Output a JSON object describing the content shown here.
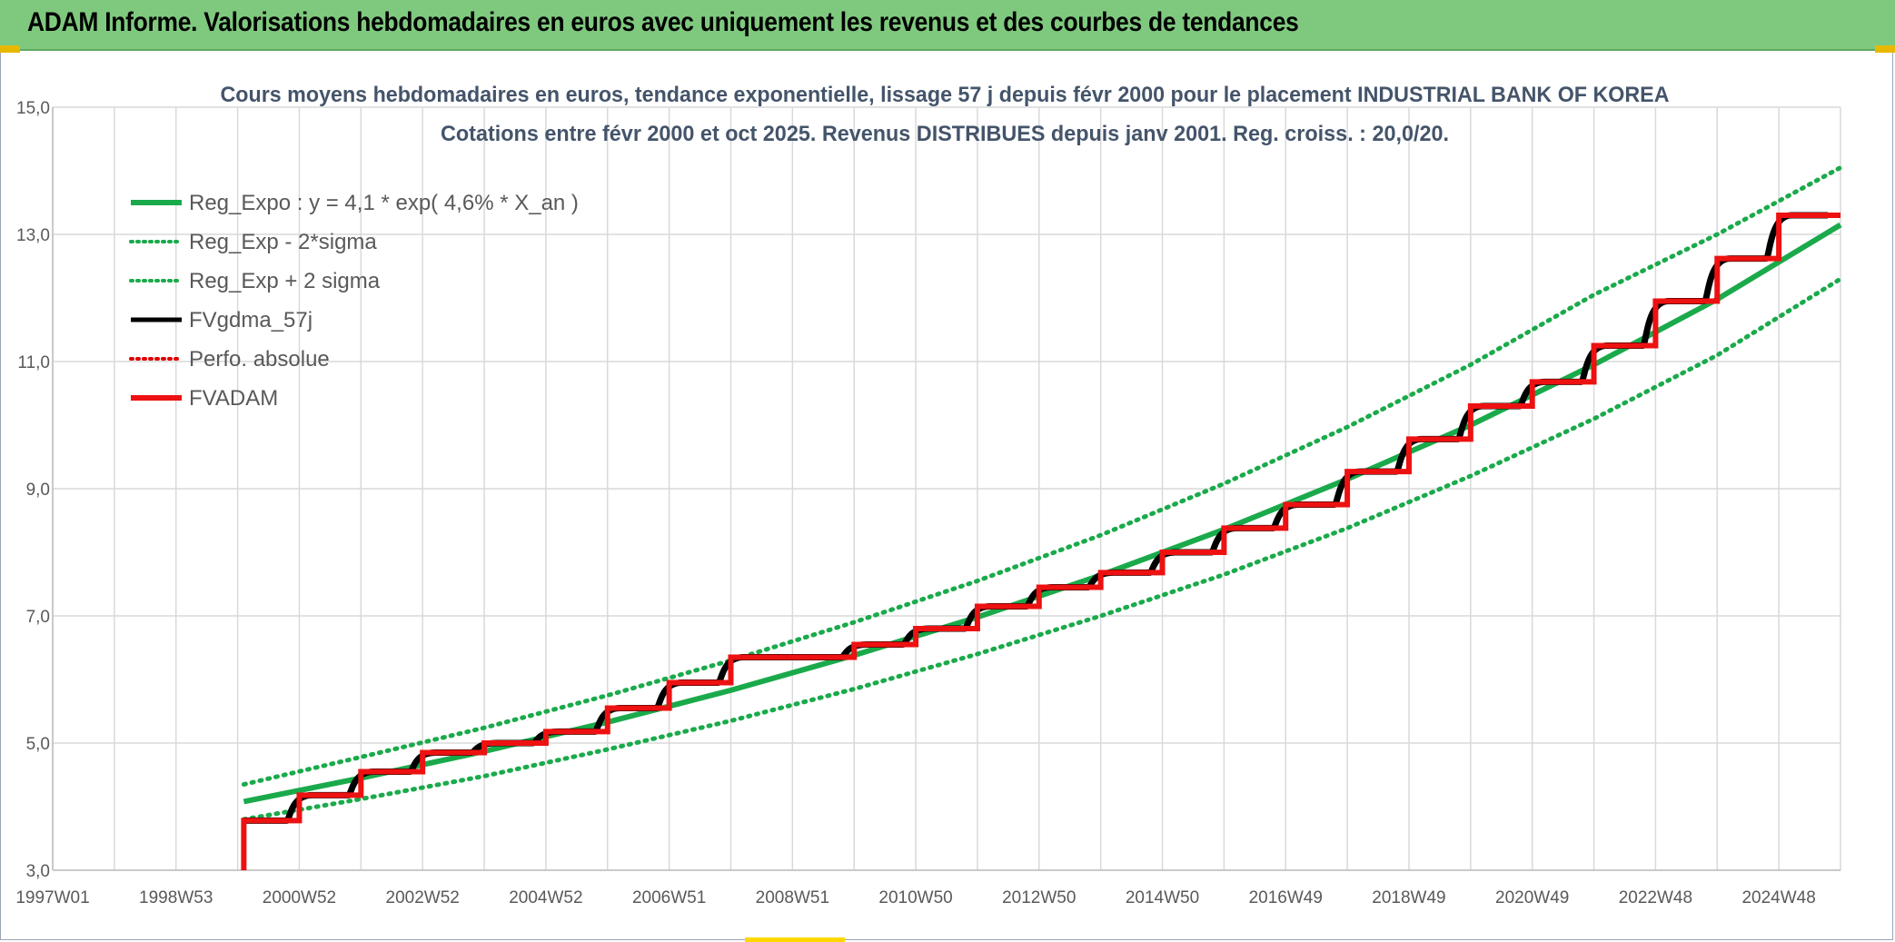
{
  "header": {
    "title": "ADAM Informe. Valorisations hebdomadaires en euros avec uniquement les revenus et des courbes de tendances"
  },
  "colors": {
    "header_bg": "#7fc97f",
    "regression": "#1aaa4b",
    "fv_gdma": "#000000",
    "perfo": "#e00000",
    "fvadam": "#ee1111",
    "grid": "#d9d9d9"
  },
  "chart_data": {
    "type": "line",
    "title": "Cours moyens hebdomadaires en euros, tendance exponentielle, lissage 57 j depuis févr 2000 pour le placement INDUSTRIAL BANK OF KOREA",
    "subtitle": "Cotations entre févr 2000 et oct 2025. Revenus DISTRIBUES depuis janv 2001. Reg. croiss. : 20,0/20.",
    "xlabel": "",
    "ylabel": "",
    "ylim": [
      3.0,
      15.0
    ],
    "xlim": [
      1997.0,
      2026.0
    ],
    "grid": true,
    "legend_position": "top-left",
    "x_tick_labels": [
      "1997W01",
      "1998W53",
      "2000W52",
      "2002W52",
      "2004W52",
      "2006W51",
      "2008W51",
      "2010W50",
      "2012W50",
      "2014W50",
      "2016W49",
      "2018W49",
      "2020W49",
      "2022W48",
      "2024W48"
    ],
    "y_tick_labels": [
      "3,0",
      "5,0",
      "7,0",
      "9,0",
      "11,0",
      "13,0",
      "15,0"
    ],
    "legend": [
      {
        "label": "Reg_Expo : y = 4,1 * exp( 4,6% *  X_an )",
        "style": "solid-thick",
        "color": "#1aaa4b"
      },
      {
        "label": "Reg_Exp - 2*sigma",
        "style": "dotted",
        "color": "#1aaa4b"
      },
      {
        "label": "Reg_Exp + 2 sigma",
        "style": "dotted",
        "color": "#1aaa4b"
      },
      {
        "label": "FVgdma_57j",
        "style": "solid",
        "color": "#000000"
      },
      {
        "label": "Perfo. absolue",
        "style": "dotted",
        "color": "#e00000"
      },
      {
        "label": "FVADAM",
        "style": "solid-thick",
        "color": "#ee1111"
      }
    ],
    "series": [
      {
        "name": "Reg_Expo : y = 4,1 * exp( 4,6% *  X_an )",
        "x": [
          2000.1,
          2002,
          2004,
          2006,
          2008,
          2010,
          2012,
          2014,
          2016,
          2018,
          2020,
          2022,
          2024,
          2026
        ],
        "y": [
          4.08,
          4.45,
          4.87,
          5.33,
          5.83,
          6.38,
          6.98,
          7.64,
          8.36,
          9.15,
          10.0,
          10.95,
          11.98,
          13.15
        ]
      },
      {
        "name": "Reg_Exp - 2*sigma",
        "x": [
          2000.1,
          2002,
          2004,
          2006,
          2008,
          2010,
          2012,
          2014,
          2016,
          2018,
          2020,
          2022,
          2024,
          2026
        ],
        "y": [
          3.8,
          4.12,
          4.48,
          4.9,
          5.35,
          5.85,
          6.4,
          7.0,
          7.65,
          8.38,
          9.2,
          10.1,
          11.1,
          12.3
        ]
      },
      {
        "name": "Reg_Exp + 2 sigma",
        "x": [
          2000.1,
          2002,
          2004,
          2006,
          2008,
          2010,
          2012,
          2014,
          2016,
          2018,
          2020,
          2022,
          2024,
          2026
        ],
        "y": [
          4.35,
          4.78,
          5.24,
          5.75,
          6.3,
          6.9,
          7.55,
          8.27,
          9.08,
          9.97,
          10.95,
          12.05,
          13.0,
          14.05
        ]
      },
      {
        "name": "FVADAM",
        "steps": [
          {
            "x": 2000.1,
            "y": 3.78
          },
          {
            "x": 2001.0,
            "y": 4.18
          },
          {
            "x": 2002.0,
            "y": 4.55
          },
          {
            "x": 2003.0,
            "y": 4.85
          },
          {
            "x": 2004.0,
            "y": 5.0
          },
          {
            "x": 2005.0,
            "y": 5.18
          },
          {
            "x": 2006.0,
            "y": 5.55
          },
          {
            "x": 2007.0,
            "y": 5.95
          },
          {
            "x": 2008.0,
            "y": 6.35
          },
          {
            "x": 2010.0,
            "y": 6.55
          },
          {
            "x": 2011.0,
            "y": 6.8
          },
          {
            "x": 2012.0,
            "y": 7.15
          },
          {
            "x": 2013.0,
            "y": 7.45
          },
          {
            "x": 2014.0,
            "y": 7.68
          },
          {
            "x": 2015.0,
            "y": 8.0
          },
          {
            "x": 2016.0,
            "y": 8.38
          },
          {
            "x": 2017.0,
            "y": 8.75
          },
          {
            "x": 2018.0,
            "y": 9.27
          },
          {
            "x": 2019.0,
            "y": 9.78
          },
          {
            "x": 2020.0,
            "y": 10.3
          },
          {
            "x": 2021.0,
            "y": 10.68
          },
          {
            "x": 2022.0,
            "y": 11.25
          },
          {
            "x": 2023.0,
            "y": 11.95
          },
          {
            "x": 2024.0,
            "y": 12.62
          },
          {
            "x": 2025.0,
            "y": 13.3
          }
        ],
        "end_x": 2026.0
      }
    ]
  }
}
